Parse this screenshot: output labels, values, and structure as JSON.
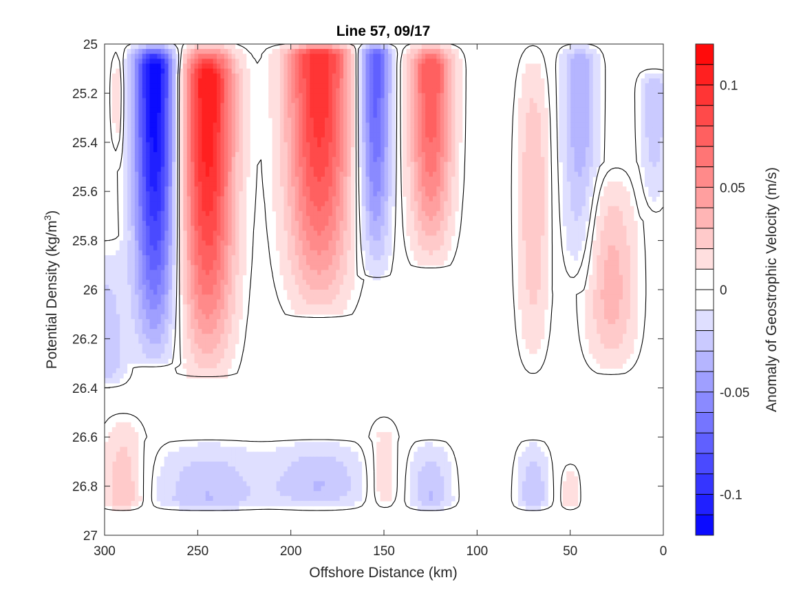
{
  "chart_data": {
    "type": "heatmap",
    "subtype": "filled-contour",
    "title": "Line 57, 09/17",
    "xlabel": "Offshore Distance (km)",
    "ylabel_main": "Potential Density (kg/m",
    "ylabel_sup": "3",
    "ylabel_end": ")",
    "xlim": [
      300,
      0
    ],
    "ylim": [
      25,
      27
    ],
    "y_reversed": true,
    "x_reversed": true,
    "x_ticks": [
      "300",
      "250",
      "200",
      "150",
      "100",
      "50",
      "0"
    ],
    "x_tick_values": [
      300,
      250,
      200,
      150,
      100,
      50,
      0
    ],
    "y_ticks": [
      "25",
      "25.2",
      "25.4",
      "25.6",
      "25.8",
      "26",
      "26.2",
      "26.4",
      "26.6",
      "26.8",
      "27"
    ],
    "y_tick_values": [
      25,
      25.2,
      25.4,
      25.6,
      25.8,
      26,
      26.2,
      26.4,
      26.6,
      26.8,
      27
    ],
    "data_extent": {
      "x": [
        0,
        300
      ],
      "y": [
        25,
        26.9
      ]
    },
    "colorbar": {
      "label": "Anomaly of Geostrophic Velocity (m/s)",
      "range": [
        -0.12,
        0.12
      ],
      "levels": 24,
      "ticks": [
        "0.1",
        "0.05",
        "0",
        "-0.05",
        "-0.1"
      ],
      "tick_values": [
        0.1,
        0.05,
        0,
        -0.05,
        -0.1
      ],
      "colormap": "blue-white-red",
      "negative_color": "#0000ff",
      "positive_color": "#ff0000"
    },
    "zero_contour": true,
    "features": [
      {
        "x_center": 273,
        "x_halfwidth": 12,
        "y_top": 25.0,
        "y_bottom": 26.3,
        "peak": -0.12,
        "peak_y": 25.1
      },
      {
        "x_center": 245,
        "x_halfwidth": 15,
        "y_top": 25.0,
        "y_bottom": 26.35,
        "peak": 0.11,
        "peak_y": 25.15
      },
      {
        "x_center": 185,
        "x_halfwidth": 18,
        "y_top": 25.0,
        "y_bottom": 26.1,
        "peak": 0.1,
        "peak_y": 25.05
      },
      {
        "x_center": 155,
        "x_halfwidth": 9,
        "y_top": 25.0,
        "y_bottom": 25.95,
        "peak": -0.08,
        "peak_y": 25.05
      },
      {
        "x_center": 125,
        "x_halfwidth": 12,
        "y_top": 25.0,
        "y_bottom": 25.9,
        "peak": 0.08,
        "peak_y": 25.1
      },
      {
        "x_center": 70,
        "x_halfwidth": 9,
        "y_top": 25.0,
        "y_bottom": 26.35,
        "peak": 0.03,
        "peak_y": 25.6
      },
      {
        "x_center": 45,
        "x_halfwidth": 10,
        "y_top": 25.0,
        "y_bottom": 26.0,
        "peak": -0.04,
        "peak_y": 25.1
      },
      {
        "x_center": 28,
        "x_halfwidth": 14,
        "y_top": 25.5,
        "y_bottom": 26.35,
        "peak": 0.035,
        "peak_y": 26.0
      },
      {
        "x_center": 5,
        "x_halfwidth": 8,
        "y_top": 25.1,
        "y_bottom": 25.7,
        "peak": -0.03,
        "peak_y": 25.2
      },
      {
        "x_center": 293,
        "x_halfwidth": 4,
        "y_top": 25.0,
        "y_bottom": 25.5,
        "peak": 0.02,
        "peak_y": 25.2
      },
      {
        "x_center": 300,
        "x_halfwidth": 12,
        "y_top": 25.8,
        "y_bottom": 26.4,
        "peak": -0.03,
        "peak_y": 26.3
      },
      {
        "x_center": 290,
        "x_halfwidth": 12,
        "y_top": 26.5,
        "y_bottom": 26.9,
        "peak": 0.03,
        "peak_y": 26.85
      },
      {
        "x_center": 245,
        "x_halfwidth": 30,
        "y_top": 26.6,
        "y_bottom": 26.9,
        "peak": -0.03,
        "peak_y": 26.85
      },
      {
        "x_center": 185,
        "x_halfwidth": 28,
        "y_top": 26.6,
        "y_bottom": 26.9,
        "peak": -0.03,
        "peak_y": 26.8
      },
      {
        "x_center": 150,
        "x_halfwidth": 9,
        "y_top": 26.5,
        "y_bottom": 26.9,
        "peak": 0.02,
        "peak_y": 26.8
      },
      {
        "x_center": 125,
        "x_halfwidth": 12,
        "y_top": 26.6,
        "y_bottom": 26.9,
        "peak": -0.03,
        "peak_y": 26.85
      },
      {
        "x_center": 70,
        "x_halfwidth": 9,
        "y_top": 26.6,
        "y_bottom": 26.9,
        "peak": -0.03,
        "peak_y": 26.85
      },
      {
        "x_center": 50,
        "x_halfwidth": 5,
        "y_top": 26.7,
        "y_bottom": 26.9,
        "peak": 0.02,
        "peak_y": 26.85
      }
    ]
  }
}
